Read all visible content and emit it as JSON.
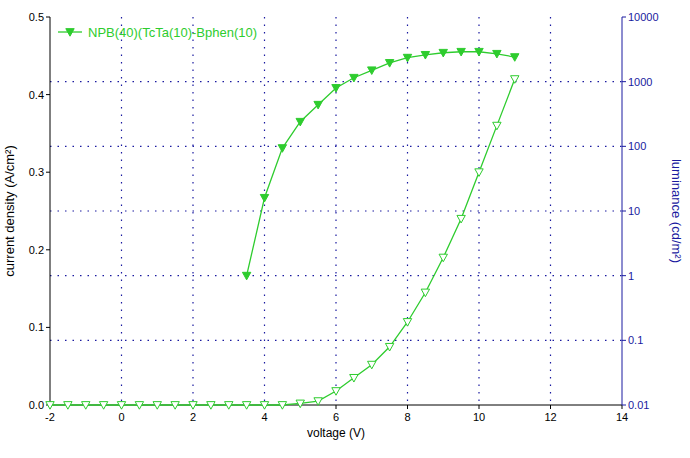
{
  "chart_data": {
    "type": "line",
    "x_label": "voltage (V)",
    "y_label": "current density (A/cm²)",
    "y2_label": "luminance (cd/m²)",
    "xlim": [
      -2,
      14
    ],
    "xticks": [
      -2,
      0,
      2,
      4,
      6,
      8,
      10,
      12,
      14
    ],
    "ylim": [
      0,
      0.5
    ],
    "yticks": [
      {
        "value": 0,
        "label": "0.0"
      },
      0.1,
      0.2,
      0.3,
      0.4,
      0.5
    ],
    "y2lim": [
      0.01,
      10000
    ],
    "y2ticks": [
      0.01,
      0.1,
      1,
      10,
      100,
      1000,
      10000
    ],
    "log": "y2",
    "grid": true,
    "legend": "upper left",
    "series": [
      {
        "name": "NPB(40)(TcTa(10)-Bphen(10)",
        "color": "#2ecc2e",
        "marker": "triangle-down",
        "line_style": "solid",
        "axis": "y2",
        "x": [
          3.5,
          4,
          4.5,
          5,
          5.5,
          6,
          6.5,
          7,
          7.5,
          8,
          8.5,
          9,
          9.5,
          10,
          10.5,
          11
        ],
        "values": [
          1,
          16,
          94,
          240,
          440,
          800,
          1150,
          1500,
          1950,
          2350,
          2600,
          2800,
          2900,
          2900,
          2700,
          2400
        ]
      },
      {
        "color": "#2ecc2e",
        "marker": "triangle-down-open",
        "line_style": "solid",
        "x": [
          -2,
          -1.5,
          -1,
          -0.5,
          0,
          0.5,
          1,
          1.5,
          2,
          2.5,
          3,
          3.5,
          4,
          4.5,
          5,
          5.5,
          6,
          6.5,
          7,
          7.5,
          8,
          8.5,
          9,
          9.5,
          10,
          10.5,
          11
        ],
        "values": [
          0,
          0,
          0,
          0,
          0,
          0,
          0,
          0,
          0,
          0,
          0,
          0,
          0,
          0,
          0.002,
          0.005,
          0.018,
          0.035,
          0.052,
          0.075,
          0.107,
          0.145,
          0.19,
          0.24,
          0.3,
          0.36,
          0.42
        ]
      }
    ]
  }
}
